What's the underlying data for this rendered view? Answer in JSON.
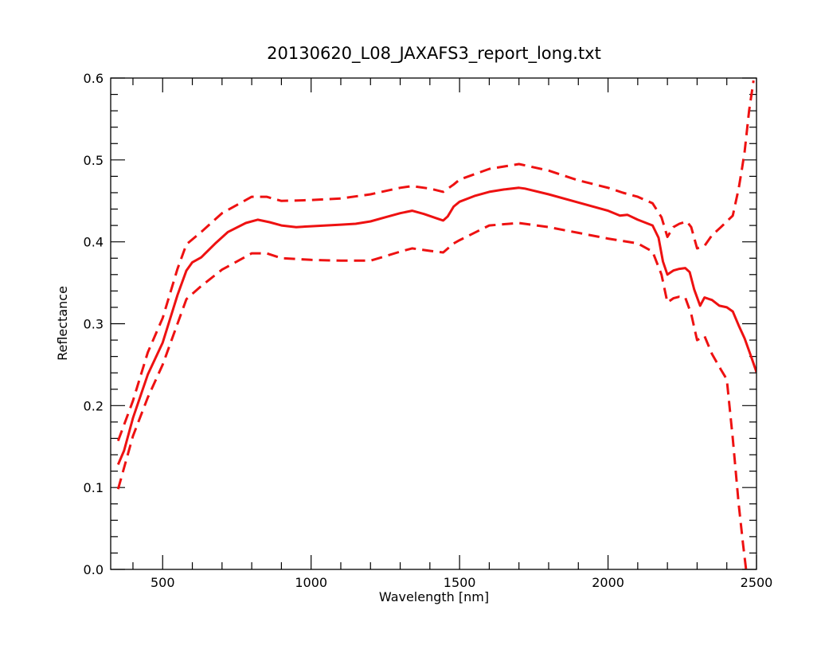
{
  "chart_data": {
    "type": "line",
    "title": "20130620_L08_JAXAFS3_report_long.txt",
    "xlabel": "Wavelength [nm]",
    "ylabel": "Reflectance",
    "xlim": [
      325,
      2500
    ],
    "ylim": [
      0.0,
      0.6
    ],
    "x_ticks": [
      500,
      1000,
      1500,
      2000,
      2500
    ],
    "x_tick_labels": [
      "500",
      "1000",
      "1500",
      "2000",
      "2500"
    ],
    "y_ticks": [
      0.0,
      0.1,
      0.2,
      0.3,
      0.4,
      0.5,
      0.6
    ],
    "y_tick_labels": [
      "0.0",
      "0.1",
      "0.2",
      "0.3",
      "0.4",
      "0.5",
      "0.6"
    ],
    "grid": false,
    "legend": "none",
    "color": "#ee1111",
    "series": [
      {
        "style": "solid",
        "points": [
          [
            350,
            0.128
          ],
          [
            370,
            0.145
          ],
          [
            400,
            0.185
          ],
          [
            450,
            0.238
          ],
          [
            500,
            0.277
          ],
          [
            550,
            0.335
          ],
          [
            580,
            0.365
          ],
          [
            600,
            0.375
          ],
          [
            630,
            0.381
          ],
          [
            680,
            0.399
          ],
          [
            720,
            0.412
          ],
          [
            780,
            0.423
          ],
          [
            820,
            0.427
          ],
          [
            860,
            0.424
          ],
          [
            900,
            0.42
          ],
          [
            950,
            0.418
          ],
          [
            1000,
            0.419
          ],
          [
            1050,
            0.42
          ],
          [
            1100,
            0.421
          ],
          [
            1150,
            0.422
          ],
          [
            1200,
            0.425
          ],
          [
            1250,
            0.43
          ],
          [
            1300,
            0.435
          ],
          [
            1340,
            0.438
          ],
          [
            1380,
            0.434
          ],
          [
            1420,
            0.429
          ],
          [
            1445,
            0.426
          ],
          [
            1460,
            0.431
          ],
          [
            1480,
            0.443
          ],
          [
            1500,
            0.449
          ],
          [
            1550,
            0.456
          ],
          [
            1600,
            0.461
          ],
          [
            1650,
            0.464
          ],
          [
            1700,
            0.466
          ],
          [
            1720,
            0.465
          ],
          [
            1800,
            0.458
          ],
          [
            1900,
            0.448
          ],
          [
            2000,
            0.438
          ],
          [
            2040,
            0.432
          ],
          [
            2065,
            0.433
          ],
          [
            2100,
            0.427
          ],
          [
            2150,
            0.42
          ],
          [
            2170,
            0.405
          ],
          [
            2185,
            0.376
          ],
          [
            2200,
            0.36
          ],
          [
            2220,
            0.365
          ],
          [
            2240,
            0.367
          ],
          [
            2260,
            0.368
          ],
          [
            2275,
            0.363
          ],
          [
            2290,
            0.342
          ],
          [
            2310,
            0.322
          ],
          [
            2325,
            0.332
          ],
          [
            2350,
            0.329
          ],
          [
            2375,
            0.322
          ],
          [
            2400,
            0.32
          ],
          [
            2420,
            0.315
          ],
          [
            2440,
            0.298
          ],
          [
            2460,
            0.282
          ],
          [
            2480,
            0.262
          ],
          [
            2500,
            0.241
          ]
        ]
      },
      {
        "style": "dashed",
        "points": [
          [
            350,
            0.157
          ],
          [
            400,
            0.206
          ],
          [
            450,
            0.265
          ],
          [
            500,
            0.307
          ],
          [
            550,
            0.367
          ],
          [
            580,
            0.397
          ],
          [
            630,
            0.412
          ],
          [
            700,
            0.435
          ],
          [
            800,
            0.455
          ],
          [
            850,
            0.455
          ],
          [
            900,
            0.45
          ],
          [
            1000,
            0.451
          ],
          [
            1100,
            0.453
          ],
          [
            1200,
            0.458
          ],
          [
            1300,
            0.466
          ],
          [
            1340,
            0.468
          ],
          [
            1400,
            0.465
          ],
          [
            1445,
            0.461
          ],
          [
            1480,
            0.47
          ],
          [
            1500,
            0.476
          ],
          [
            1600,
            0.489
          ],
          [
            1700,
            0.495
          ],
          [
            1800,
            0.487
          ],
          [
            1900,
            0.475
          ],
          [
            2000,
            0.466
          ],
          [
            2050,
            0.46
          ],
          [
            2100,
            0.455
          ],
          [
            2150,
            0.447
          ],
          [
            2180,
            0.43
          ],
          [
            2200,
            0.406
          ],
          [
            2220,
            0.418
          ],
          [
            2240,
            0.422
          ],
          [
            2265,
            0.425
          ],
          [
            2280,
            0.418
          ],
          [
            2300,
            0.392
          ],
          [
            2325,
            0.395
          ],
          [
            2350,
            0.408
          ],
          [
            2380,
            0.418
          ],
          [
            2400,
            0.425
          ],
          [
            2420,
            0.432
          ],
          [
            2440,
            0.465
          ],
          [
            2450,
            0.487
          ],
          [
            2460,
            0.51
          ],
          [
            2475,
            0.56
          ],
          [
            2490,
            0.597
          ]
        ]
      },
      {
        "style": "dashed",
        "points": [
          [
            350,
            0.098
          ],
          [
            400,
            0.163
          ],
          [
            450,
            0.21
          ],
          [
            500,
            0.25
          ],
          [
            550,
            0.3
          ],
          [
            580,
            0.33
          ],
          [
            630,
            0.346
          ],
          [
            700,
            0.366
          ],
          [
            800,
            0.386
          ],
          [
            850,
            0.386
          ],
          [
            900,
            0.38
          ],
          [
            1000,
            0.378
          ],
          [
            1100,
            0.377
          ],
          [
            1200,
            0.377
          ],
          [
            1300,
            0.388
          ],
          [
            1340,
            0.392
          ],
          [
            1400,
            0.389
          ],
          [
            1445,
            0.387
          ],
          [
            1480,
            0.398
          ],
          [
            1500,
            0.402
          ],
          [
            1600,
            0.42
          ],
          [
            1700,
            0.423
          ],
          [
            1800,
            0.418
          ],
          [
            1900,
            0.411
          ],
          [
            2000,
            0.404
          ],
          [
            2050,
            0.401
          ],
          [
            2100,
            0.398
          ],
          [
            2150,
            0.388
          ],
          [
            2180,
            0.36
          ],
          [
            2200,
            0.326
          ],
          [
            2220,
            0.331
          ],
          [
            2240,
            0.333
          ],
          [
            2260,
            0.332
          ],
          [
            2280,
            0.312
          ],
          [
            2300,
            0.28
          ],
          [
            2325,
            0.285
          ],
          [
            2350,
            0.263
          ],
          [
            2380,
            0.244
          ],
          [
            2400,
            0.232
          ],
          [
            2420,
            0.16
          ],
          [
            2440,
            0.08
          ],
          [
            2455,
            0.03
          ],
          [
            2465,
            0.0
          ]
        ]
      }
    ]
  }
}
